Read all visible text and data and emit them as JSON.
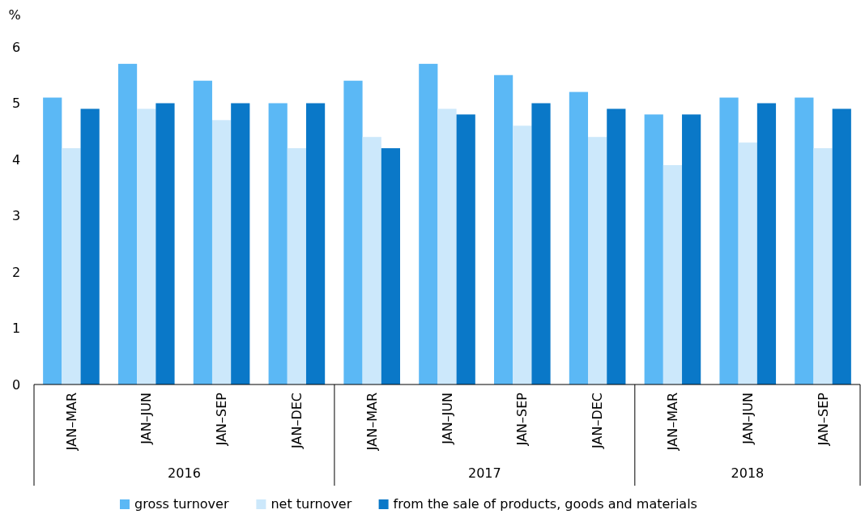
{
  "chart_data": {
    "type": "bar",
    "ylabel": "%",
    "categories": [
      "JAN–MAR",
      "JAN–JUN",
      "JAN–SEP",
      "JAN–DEC",
      "JAN–MAR",
      "JAN–JUN",
      "JAN–SEP",
      "JAN–DEC",
      "JAN–MAR",
      "JAN–JUN",
      "JAN–SEP"
    ],
    "series": [
      {
        "name": "gross turnover",
        "color": "#5bb8f5",
        "values": [
          5.1,
          5.7,
          5.4,
          5.0,
          5.4,
          5.7,
          5.5,
          5.2,
          4.8,
          5.1,
          5.1
        ]
      },
      {
        "name": "net turnover",
        "color": "#cce8fb",
        "values": [
          4.2,
          4.9,
          4.7,
          4.2,
          4.4,
          4.9,
          4.6,
          4.4,
          3.9,
          4.3,
          4.2
        ]
      },
      {
        "name": "from the sale of products, goods and materials",
        "color": "#0a78c8",
        "values": [
          4.9,
          5.0,
          5.0,
          5.0,
          4.2,
          4.8,
          5.0,
          4.9,
          4.8,
          5.0,
          4.9
        ]
      }
    ],
    "ylim": [
      0,
      6
    ],
    "yticks": [
      0,
      1,
      2,
      3,
      4,
      5,
      6
    ],
    "grid": false,
    "legend": "bottom",
    "annotations": [
      "2016",
      "2017",
      "2018"
    ]
  }
}
